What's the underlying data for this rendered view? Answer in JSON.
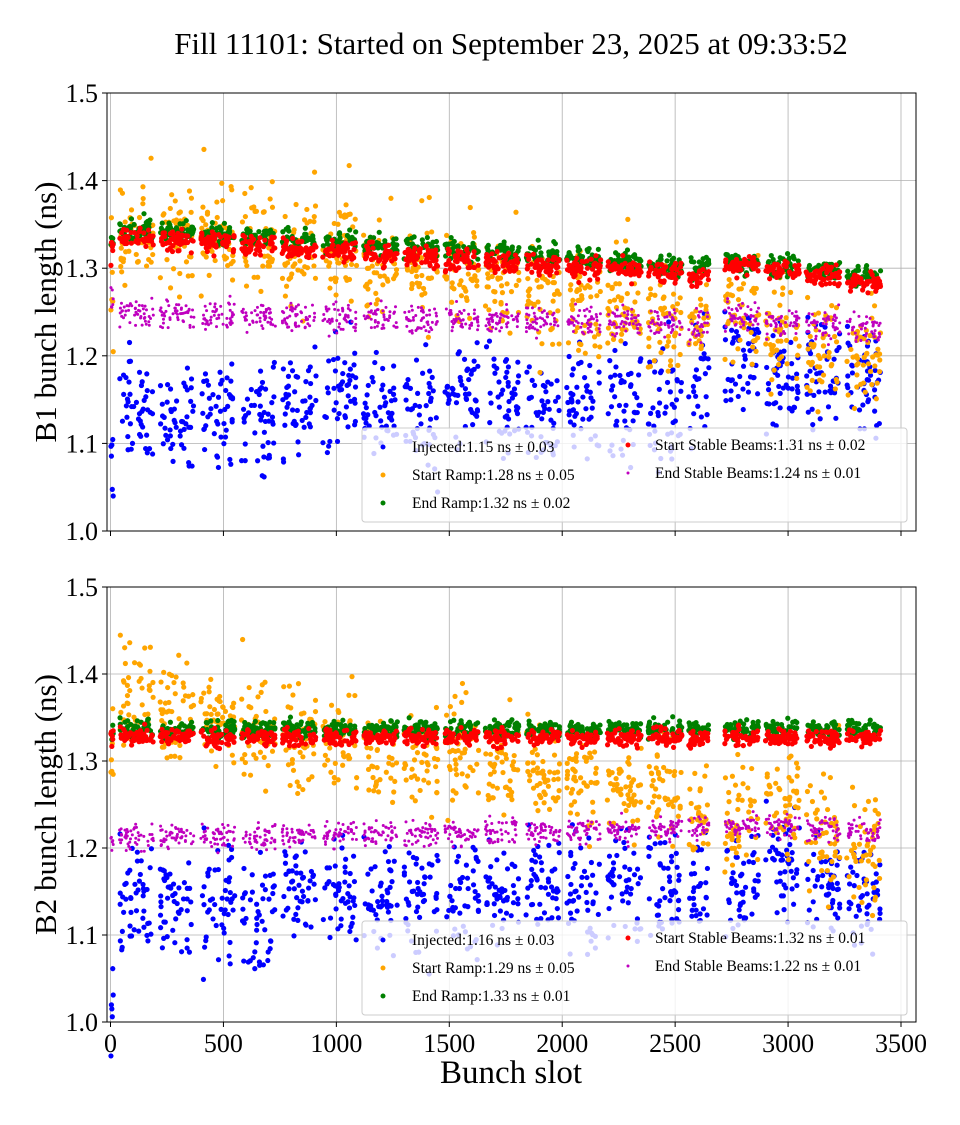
{
  "title": "Fill 11101: Started on September 23, 2025 at 09:33:52",
  "colors": {
    "Injected": "#0000ff",
    "Start Ramp": "#ffa500",
    "End Ramp": "#008000",
    "Start Stable Beams": "#ff0000",
    "End Stable Beams": "#bf00bf"
  },
  "chart_data": [
    {
      "type": "scatter",
      "ylabel": "B1 bunch length (ns)",
      "xlabel": "",
      "xlim": [
        0,
        3500
      ],
      "ylim": [
        1.0,
        1.5
      ],
      "xticks": [
        0,
        500,
        1000,
        1500,
        2000,
        2500,
        3000,
        3500
      ],
      "yticks": [
        "1.0",
        "1.1",
        "1.2",
        "1.3",
        "1.4",
        "1.5"
      ],
      "grid": true,
      "legend_placement": "lower-right",
      "train_start_slots": [
        40,
        220,
        400,
        580,
        760,
        940,
        1120,
        1300,
        1480,
        1660,
        1840,
        2020,
        2200,
        2380,
        2560,
        2720,
        2900,
        3080,
        3260
      ],
      "train_lengths": [
        150,
        150,
        150,
        150,
        150,
        150,
        150,
        150,
        150,
        150,
        150,
        150,
        150,
        150,
        90,
        150,
        150,
        150,
        150
      ],
      "series": [
        {
          "name": "Injected",
          "legend": "Injected:1.15 ns ± 0.03",
          "spread": 0.03,
          "pilot": 1.06,
          "train_means": [
            1.14,
            1.13,
            1.14,
            1.13,
            1.15,
            1.165,
            1.14,
            1.14,
            1.15,
            1.15,
            1.14,
            1.15,
            1.14,
            1.15,
            1.18,
            1.2,
            1.17,
            1.18,
            1.18
          ]
        },
        {
          "name": "Start Ramp",
          "legend": "Start Ramp:1.28 ns ± 0.05",
          "spread": 0.028,
          "pilot": 1.27,
          "train_means": [
            1.34,
            1.335,
            1.335,
            1.33,
            1.325,
            1.325,
            1.3,
            1.295,
            1.285,
            1.28,
            1.27,
            1.26,
            1.25,
            1.24,
            1.235,
            1.25,
            1.22,
            1.21,
            1.2
          ]
        },
        {
          "name": "End Ramp",
          "legend": "End Ramp:1.32 ns ± 0.02",
          "spread": 0.006,
          "pilot": 1.33,
          "train_means": [
            1.345,
            1.342,
            1.339,
            1.336,
            1.333,
            1.33,
            1.326,
            1.323,
            1.32,
            1.317,
            1.314,
            1.311,
            1.308,
            1.304,
            1.3,
            1.307,
            1.303,
            1.299,
            1.29
          ]
        },
        {
          "name": "Start Stable Beams",
          "legend": "Start Stable Beams:1.31 ns ± 0.02",
          "spread": 0.006,
          "pilot": 1.32,
          "train_means": [
            1.335,
            1.332,
            1.329,
            1.326,
            1.323,
            1.32,
            1.316,
            1.313,
            1.31,
            1.307,
            1.304,
            1.301,
            1.298,
            1.294,
            1.29,
            1.302,
            1.298,
            1.293,
            1.284
          ]
        },
        {
          "name": "End Stable Beams",
          "legend": "End Stable Beams:1.24 ns ± 0.01",
          "spread": 0.008,
          "pilot": 1.27,
          "train_means": [
            1.248,
            1.247,
            1.246,
            1.245,
            1.245,
            1.244,
            1.243,
            1.242,
            1.242,
            1.241,
            1.24,
            1.24,
            1.239,
            1.238,
            1.232,
            1.245,
            1.236,
            1.235,
            1.232
          ]
        }
      ]
    },
    {
      "type": "scatter",
      "ylabel": "B2 bunch length (ns)",
      "xlabel": "Bunch slot",
      "xlim": [
        0,
        3500
      ],
      "ylim": [
        1.0,
        1.5
      ],
      "xticks": [
        0,
        500,
        1000,
        1500,
        2000,
        2500,
        3000,
        3500
      ],
      "xticklabels": [
        "0",
        "500",
        "1000",
        "1500",
        "2000",
        "2500",
        "3000",
        "3500"
      ],
      "yticks": [
        "1.0",
        "1.1",
        "1.2",
        "1.3",
        "1.4",
        "1.5"
      ],
      "grid": true,
      "legend_placement": "lower-right",
      "train_start_slots": [
        40,
        220,
        400,
        580,
        760,
        940,
        1120,
        1300,
        1480,
        1660,
        1840,
        2020,
        2200,
        2380,
        2560,
        2720,
        2900,
        3080,
        3260
      ],
      "train_lengths": [
        150,
        150,
        150,
        150,
        150,
        150,
        150,
        150,
        150,
        150,
        150,
        150,
        150,
        150,
        90,
        150,
        150,
        150,
        150
      ],
      "series": [
        {
          "name": "Injected",
          "legend": "Injected:1.16 ns ± 0.03",
          "spread": 0.03,
          "pilot": 1.04,
          "train_means": [
            1.14,
            1.14,
            1.14,
            1.13,
            1.16,
            1.15,
            1.15,
            1.15,
            1.15,
            1.15,
            1.16,
            1.15,
            1.16,
            1.17,
            1.17,
            1.16,
            1.18,
            1.16,
            1.15
          ]
        },
        {
          "name": "Start Ramp",
          "legend": "Start Ramp:1.29 ns ± 0.05",
          "spread": 0.028,
          "pilot": 1.3,
          "train_means": [
            1.365,
            1.355,
            1.345,
            1.33,
            1.325,
            1.32,
            1.31,
            1.305,
            1.3,
            1.29,
            1.285,
            1.28,
            1.27,
            1.265,
            1.245,
            1.23,
            1.25,
            1.21,
            1.19
          ]
        },
        {
          "name": "End Ramp",
          "legend": "End Ramp:1.33 ns ± 0.01",
          "spread": 0.005,
          "pilot": 1.33,
          "train_means": [
            1.337,
            1.337,
            1.337,
            1.337,
            1.337,
            1.337,
            1.337,
            1.337,
            1.337,
            1.337,
            1.337,
            1.337,
            1.337,
            1.337,
            1.337,
            1.337,
            1.337,
            1.337,
            1.337
          ]
        },
        {
          "name": "Start Stable Beams",
          "legend": "Start Stable Beams:1.32 ns ± 0.01",
          "spread": 0.005,
          "pilot": 1.325,
          "train_means": [
            1.327,
            1.327,
            1.327,
            1.327,
            1.327,
            1.327,
            1.327,
            1.327,
            1.327,
            1.327,
            1.327,
            1.327,
            1.327,
            1.327,
            1.327,
            1.327,
            1.327,
            1.327,
            1.327
          ]
        },
        {
          "name": "End Stable Beams",
          "legend": "End Stable Beams:1.22 ns ± 0.01",
          "spread": 0.007,
          "pilot": 1.21,
          "train_means": [
            1.212,
            1.213,
            1.213,
            1.213,
            1.214,
            1.215,
            1.216,
            1.216,
            1.217,
            1.218,
            1.219,
            1.22,
            1.221,
            1.222,
            1.224,
            1.226,
            1.226,
            1.222,
            1.22
          ]
        }
      ]
    }
  ]
}
